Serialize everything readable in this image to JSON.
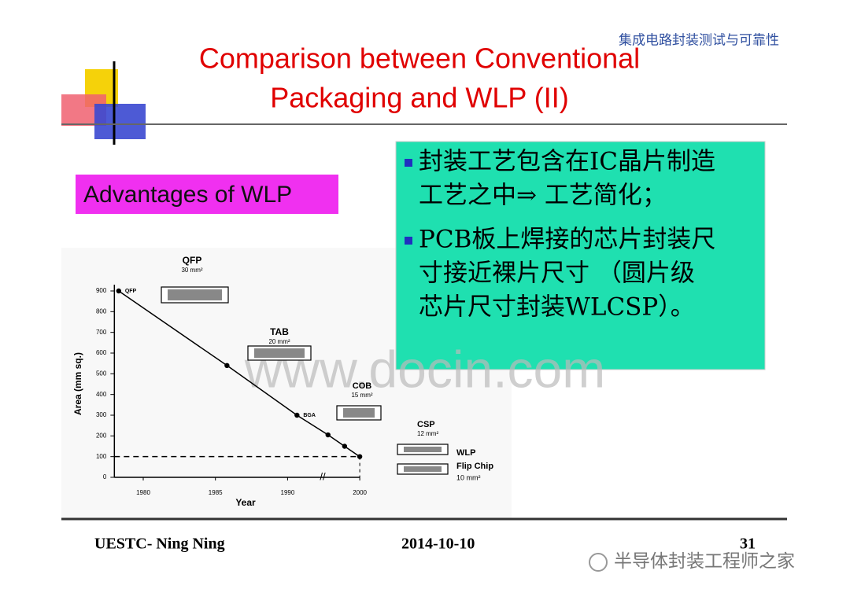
{
  "header": {
    "tag": "集成电路封装测试与可靠性",
    "title_lines": [
      "Comparison between Conventional",
      "Packaging and WLP (II)"
    ]
  },
  "advantages_label": "Advantages of WLP",
  "bullets": [
    [
      "封装工艺包含在IC晶片制造",
      "工艺之中⇒ 工艺简化；"
    ],
    [
      "PCB板上焊接的芯片封装尺",
      "寸接近裸片尺寸 （圆片级",
      "芯片尺寸封装WLCSP）。"
    ]
  ],
  "watermark": "www.docin.com",
  "chart_data": {
    "type": "line",
    "x_label": "Year",
    "y_label": "Area (mm sq.)",
    "x": [
      1978.3,
      1985.8,
      1991.3,
      1995.6,
      1997.9,
      2000
    ],
    "values": [
      900,
      540,
      300,
      205,
      150,
      100
    ],
    "point_labels": [
      "QFP",
      null,
      "BGA",
      null,
      null,
      null
    ],
    "color": "#000000",
    "hline": 100,
    "xlim": [
      1978,
      2000
    ],
    "xticks": [
      1980,
      1985,
      1990,
      2000
    ],
    "ylim": [
      0,
      900
    ],
    "yticks": [
      0,
      100,
      200,
      300,
      400,
      500,
      600,
      700,
      800,
      900
    ],
    "annotations": [
      "QFP",
      "30 mm²",
      "TAB",
      "20 mm²",
      "COB",
      "15 mm²",
      "CSP",
      "12 mm²",
      "WLP",
      "Flip Chip",
      "10 mm²"
    ]
  },
  "footer": {
    "author": "UESTC- Ning Ning",
    "date": "2014-10-10",
    "page": 31
  },
  "source": "半导体封装工程师之家"
}
